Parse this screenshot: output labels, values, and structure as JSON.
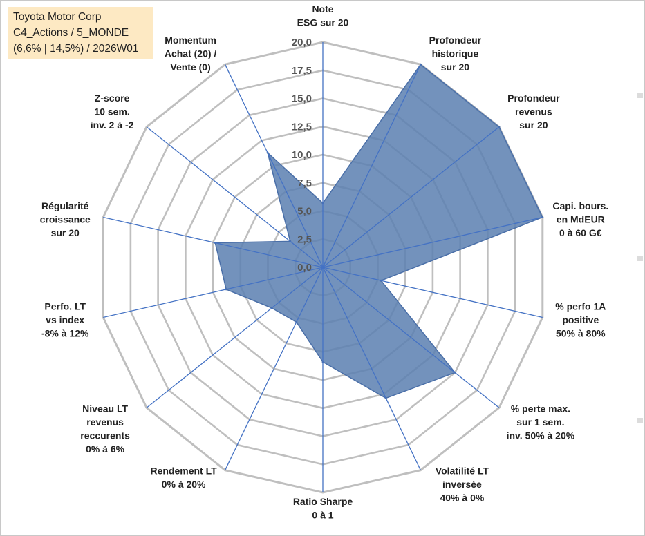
{
  "header": {
    "line1": "Toyota Motor Corp",
    "line2": "C4_Actions / 5_MONDE",
    "line3": "(6,6% | 14,5%) / 2026W01"
  },
  "colors": {
    "fill": "#5b7fb0",
    "stroke": "#4a6fa8",
    "spoke": "#4472c4",
    "grid": "#bfbfbf",
    "titlebox": "#fde9c3"
  },
  "chart_data": {
    "type": "radar",
    "title": "",
    "range": [
      0,
      20
    ],
    "grid_step": 2.5,
    "tick_labels": [
      "0,0",
      "2,5",
      "5,0",
      "7,5",
      "10,0",
      "12,5",
      "15,0",
      "17,5",
      "20,0"
    ],
    "categories": [
      [
        "Note",
        "ESG sur 20"
      ],
      [
        "Profondeur",
        "historique",
        "sur 20"
      ],
      [
        "Profondeur",
        "revenus",
        "sur 20"
      ],
      [
        "Capi. bours.",
        "en MdEUR",
        "0 à 60 G€"
      ],
      [
        "% perfo 1A",
        "positive",
        "50% à 80%"
      ],
      [
        "% perte max.",
        "sur 1 sem.",
        "inv. 50% à 20%"
      ],
      [
        "Volatilité LT",
        "inversée",
        "40% à 0%"
      ],
      [
        "Ratio Sharpe",
        "0 à 1"
      ],
      [
        "Rendement LT",
        "0% à 20%"
      ],
      [
        "Niveau LT",
        "revenus",
        "reccurents",
        "0% à 6%"
      ],
      [
        "Perfo. LT",
        "vs index",
        "-8% à 12%"
      ],
      [
        "Régularité",
        "croissance",
        "sur 20"
      ],
      [
        "Z-score",
        "10 sem.",
        "inv. 2 à -2"
      ],
      [
        "Momentum",
        "Achat (20) /",
        "Vente (0)"
      ]
    ],
    "series": [
      {
        "values": [
          5.7,
          20,
          20,
          20,
          5.3,
          15,
          12.9,
          8.4,
          5.4,
          5.8,
          8.8,
          9.8,
          3.7,
          11.3
        ]
      }
    ],
    "grid": true,
    "legend": "none"
  }
}
